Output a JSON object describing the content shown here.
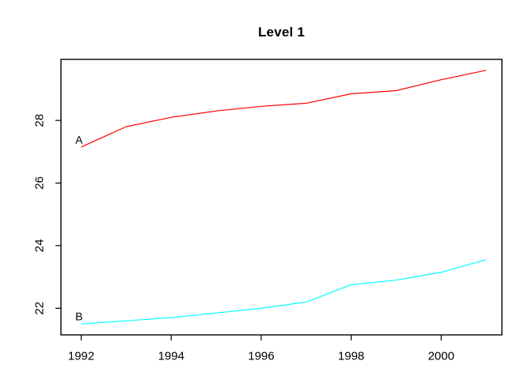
{
  "figure": {
    "background": "#ffffff",
    "frame_color": "#000000",
    "text_color": "#000000"
  },
  "chart_data": {
    "type": "line",
    "title": "Level 1",
    "xlabel": "",
    "ylabel": "",
    "x": [
      1992,
      1993,
      1994,
      1995,
      1996,
      1997,
      1998,
      1999,
      2000,
      2001
    ],
    "series": [
      {
        "name": "A",
        "inline_label": "A",
        "color": "#FF0000",
        "values": [
          27.15,
          27.8,
          28.1,
          28.3,
          28.45,
          28.55,
          28.85,
          28.95,
          29.3,
          29.6
        ],
        "label_pos": {
          "x": 1991.95,
          "y": 27.38
        }
      },
      {
        "name": "B",
        "inline_label": "B",
        "color": "#00FFFF",
        "values": [
          21.5,
          21.6,
          21.7,
          21.85,
          22.0,
          22.2,
          22.75,
          22.9,
          23.15,
          23.55
        ],
        "label_pos": {
          "x": 1991.95,
          "y": 21.75
        }
      }
    ],
    "x_ticks": [
      1992,
      1994,
      1996,
      1998,
      2000
    ],
    "y_ticks": [
      22,
      24,
      26,
      28
    ],
    "xlim": [
      1991.55,
      2001.35
    ],
    "ylim": [
      21.15,
      29.95
    ],
    "grid": false,
    "legend": "inline-labels"
  }
}
